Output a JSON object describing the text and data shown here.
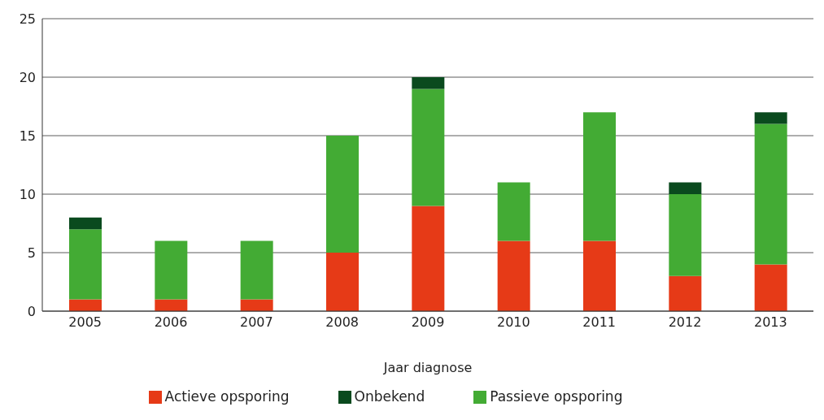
{
  "chart_data": {
    "type": "bar",
    "stacked": true,
    "xlabel": "Jaar diagnose",
    "categories": [
      "2005",
      "2006",
      "2007",
      "2008",
      "2009",
      "2010",
      "2011",
      "2012",
      "2013"
    ],
    "series": [
      {
        "name": "Actieve opsporing",
        "color": "#e63a17",
        "values": [
          1,
          1,
          1,
          5,
          9,
          6,
          6,
          3,
          4
        ]
      },
      {
        "name": "Passieve opsporing",
        "color": "#43ab34",
        "values": [
          6,
          5,
          5,
          10,
          10,
          5,
          11,
          7,
          12
        ]
      },
      {
        "name": "Onbekend",
        "color": "#0a4a1e",
        "values": [
          1,
          0,
          0,
          0,
          1,
          0,
          0,
          1,
          1
        ]
      }
    ],
    "ylim": [
      0,
      25
    ],
    "yticks": [
      0,
      5,
      10,
      15,
      20,
      25
    ],
    "grid": "y",
    "legend": "bottom"
  }
}
